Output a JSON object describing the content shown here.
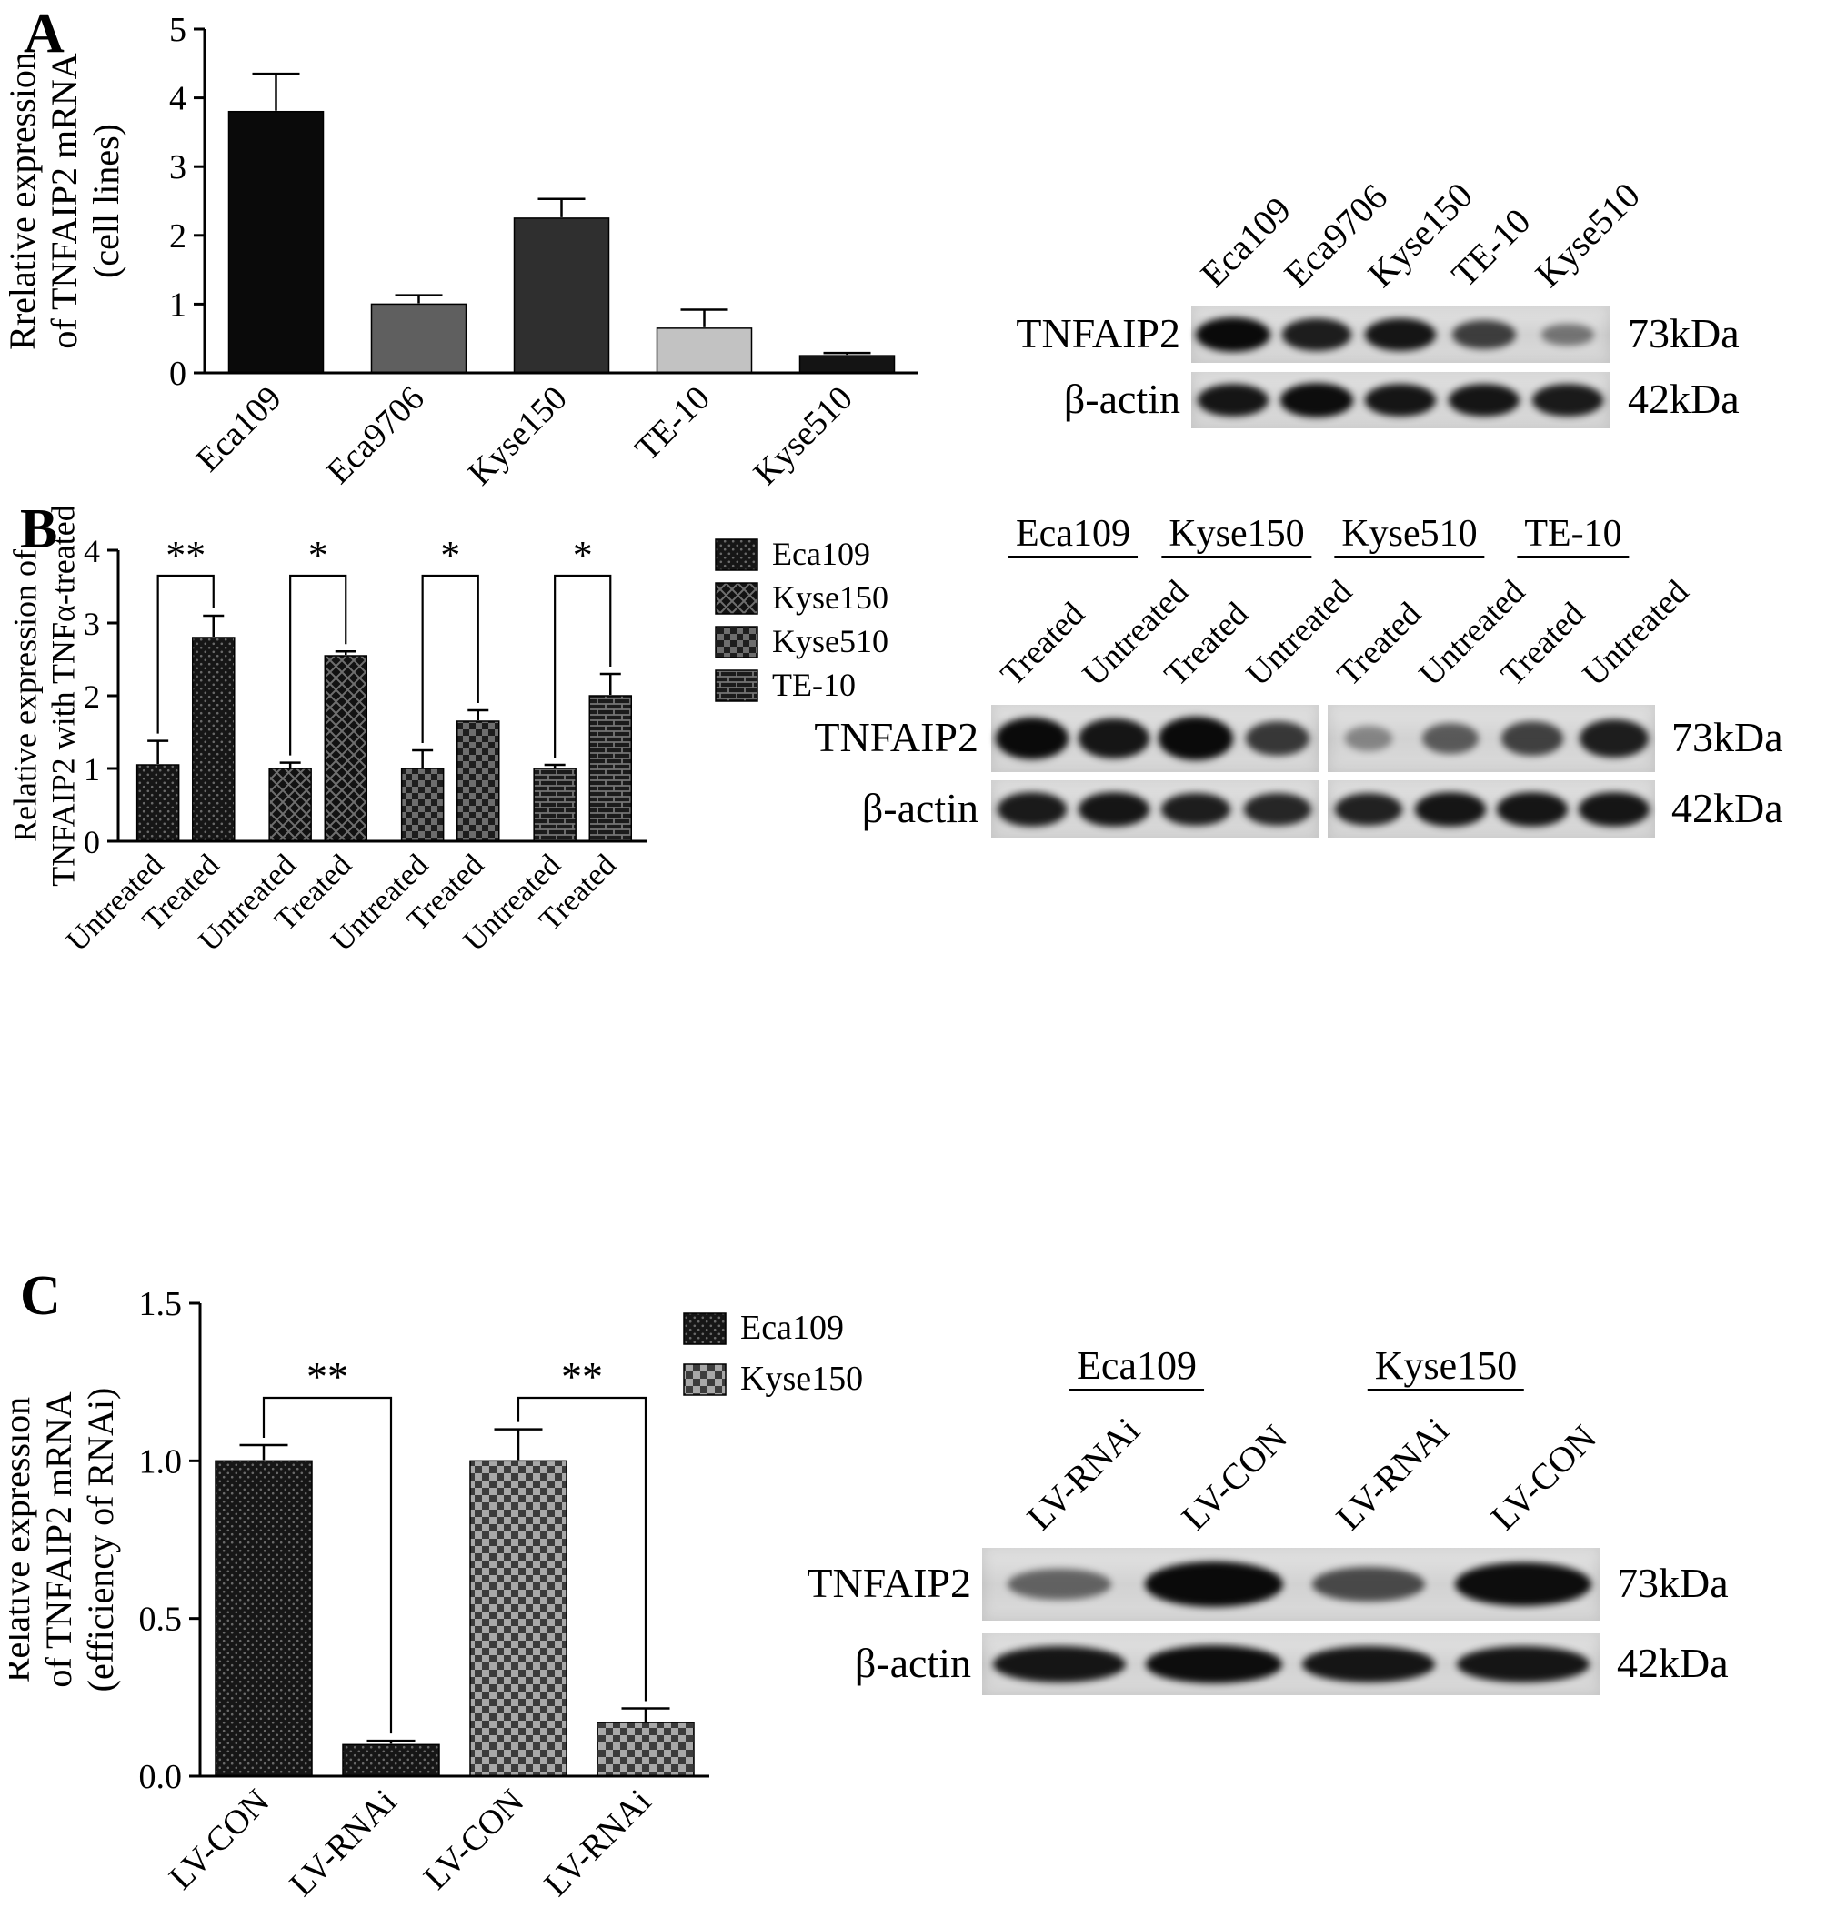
{
  "figure": {
    "panels": [
      {
        "letter": "A",
        "blot": {
          "lane_labels": [
            "Eca109",
            "Eca9706",
            "Kyse150",
            "TE-10",
            "Kyse510"
          ],
          "rows": [
            {
              "protein": "TNFAIP2",
              "size": "73kDa",
              "bands": [
                0.95,
                0.8,
                0.85,
                0.62,
                0.3
              ]
            },
            {
              "protein": "β-actin",
              "size": "42kDa",
              "bands": [
                0.85,
                0.9,
                0.85,
                0.85,
                0.82
              ]
            }
          ]
        }
      },
      {
        "letter": "B",
        "blot": {
          "group_labels": [
            "Eca109",
            "Kyse150",
            "Kyse510",
            "TE-10"
          ],
          "lane_labels": [
            "Treated",
            "Untreated",
            "Treated",
            "Untreated",
            "Treated",
            "Untreated",
            "Treated",
            "Untreated"
          ],
          "rows": [
            {
              "protein": "TNFAIP2",
              "size": "73kDa",
              "bands": [
                0.95,
                0.85,
                1.0,
                0.65,
                0.2,
                0.45,
                0.6,
                0.8
              ]
            },
            {
              "protein": "β-actin",
              "size": "42kDa",
              "bands": [
                0.82,
                0.85,
                0.8,
                0.75,
                0.78,
                0.85,
                0.85,
                0.85
              ]
            }
          ]
        }
      },
      {
        "letter": "C",
        "blot": {
          "group_labels": [
            "Eca109",
            "Kyse150"
          ],
          "lane_labels": [
            "LV-RNAi",
            "LV-CON",
            "LV-RNAi",
            "LV-CON"
          ],
          "rows": [
            {
              "protein": "TNFAIP2",
              "size": "73kDa",
              "bands": [
                0.4,
                0.95,
                0.55,
                0.9
              ]
            },
            {
              "protein": "β-actin",
              "size": "42kDa",
              "bands": [
                0.85,
                0.9,
                0.85,
                0.85
              ]
            }
          ]
        }
      }
    ]
  },
  "chart_data": [
    {
      "id": "A",
      "type": "bar",
      "title": "",
      "categories": [
        "Eca109",
        "Eca9706",
        "Kyse150",
        "TE-10",
        "Kyse510"
      ],
      "values": [
        3.8,
        1.0,
        2.25,
        0.65,
        0.25
      ],
      "errors": [
        0.55,
        0.13,
        0.28,
        0.27,
        0.04
      ],
      "bar_colors": [
        "#0a0a0a",
        "#5f5f5f",
        "#2f2f2f",
        "#c2c2c2",
        "#141414"
      ],
      "xlabel": "",
      "ylabel": "Rrelative expression of TNFAIP2 mRNA (cell lines)",
      "ylabel_lines": [
        "Rrelative expression",
        "of TNFAIP2 mRNA",
        "(cell lines)"
      ],
      "ylim": [
        0,
        5
      ],
      "yticks": [
        0,
        1,
        2,
        3,
        4,
        5
      ],
      "ytick_labels": [
        "0",
        "1",
        "2",
        "3",
        "4",
        "5"
      ],
      "grid": false,
      "legend": null
    },
    {
      "id": "B",
      "type": "bar",
      "title": "",
      "categories": [
        "Untreated",
        "Treated",
        "Untreated",
        "Treated",
        "Untreated",
        "Treated",
        "Untreated",
        "Treated"
      ],
      "values": [
        1.05,
        2.8,
        1.0,
        2.55,
        1.0,
        1.65,
        1.0,
        2.0
      ],
      "errors": [
        0.33,
        0.3,
        0.08,
        0.06,
        0.25,
        0.15,
        0.05,
        0.3
      ],
      "bar_patterns": [
        "dots",
        "dots",
        "diamond",
        "diamond",
        "checker",
        "checker",
        "brick",
        "brick"
      ],
      "significance": [
        {
          "pair": [
            0,
            1
          ],
          "label": "**",
          "y": 3.65
        },
        {
          "pair": [
            2,
            3
          ],
          "label": "*",
          "y": 3.65
        },
        {
          "pair": [
            4,
            5
          ],
          "label": "*",
          "y": 3.65
        },
        {
          "pair": [
            6,
            7
          ],
          "label": "*",
          "y": 3.65
        }
      ],
      "xlabel": "",
      "ylabel": "Relative expression of TNFAIP2 with TNFα-treated",
      "ylabel_lines": [
        "Relative expression of",
        "TNFAIP2 with TNFα-treated"
      ],
      "ylim": [
        0,
        4
      ],
      "yticks": [
        0,
        1,
        2,
        3,
        4
      ],
      "ytick_labels": [
        "0",
        "1",
        "2",
        "3",
        "4"
      ],
      "grid": false,
      "legend": {
        "position": "right",
        "entries": [
          {
            "label": "Eca109",
            "pattern": "dots"
          },
          {
            "label": "Kyse150",
            "pattern": "diamond"
          },
          {
            "label": "Kyse510",
            "pattern": "checker"
          },
          {
            "label": "TE-10",
            "pattern": "brick"
          }
        ]
      }
    },
    {
      "id": "C",
      "type": "bar",
      "title": "",
      "categories": [
        "LV-CON",
        "LV-RNAi",
        "LV-CON",
        "LV-RNAi"
      ],
      "values": [
        1.0,
        0.1,
        1.0,
        0.17
      ],
      "errors": [
        0.05,
        0.012,
        0.1,
        0.045
      ],
      "bar_patterns": [
        "dots",
        "dots",
        "checkerLight",
        "checkerLight"
      ],
      "significance": [
        {
          "pair": [
            0,
            1
          ],
          "label": "**",
          "y": 1.2
        },
        {
          "pair": [
            2,
            3
          ],
          "label": "**",
          "y": 1.2
        }
      ],
      "xlabel": "",
      "ylabel": "Relative expression of TNFAIP2 mRNA (efficiency of RNAi)",
      "ylabel_lines": [
        "Relative expression",
        "of TNFAIP2 mRNA",
        "(efficiency of RNAi)"
      ],
      "ylim": [
        0,
        1.5
      ],
      "yticks": [
        0,
        0.5,
        1.0,
        1.5
      ],
      "ytick_labels": [
        "0.0",
        "0.5",
        "1.0",
        "1.5"
      ],
      "grid": false,
      "legend": {
        "position": "right",
        "entries": [
          {
            "label": "Eca109",
            "pattern": "dots"
          },
          {
            "label": "Kyse150",
            "pattern": "checkerLight"
          }
        ]
      }
    }
  ]
}
